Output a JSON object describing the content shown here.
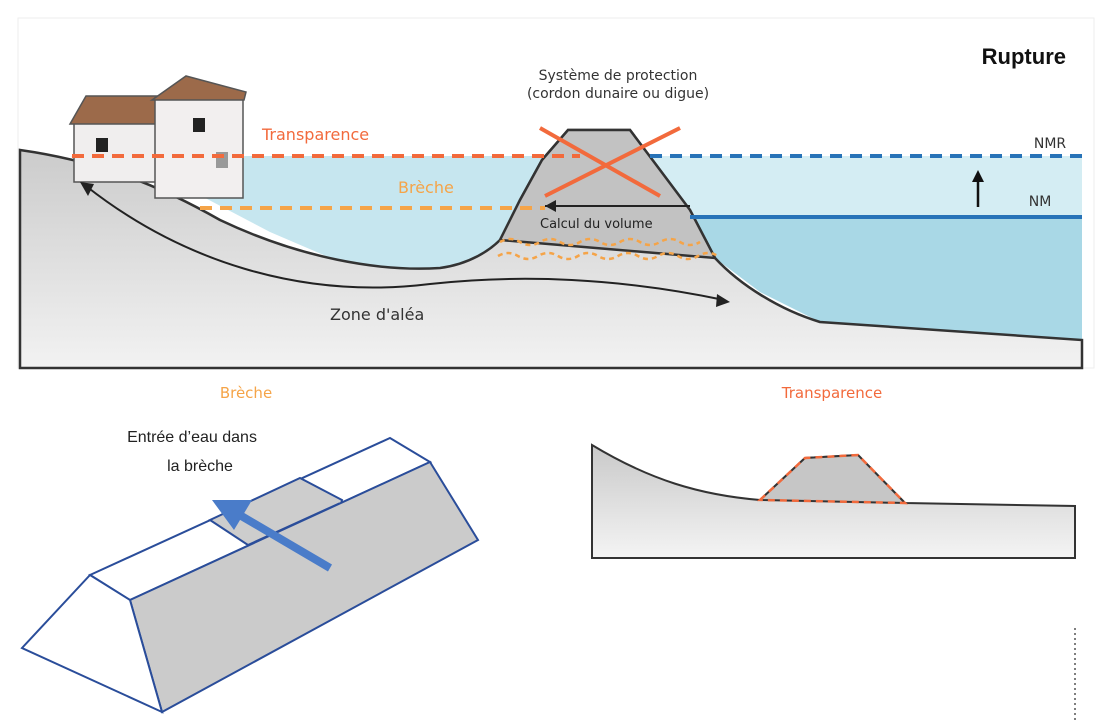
{
  "top": {
    "title": "Rupture",
    "protection_line1": "Système de protection",
    "protection_line2": "(cordon dunaire ou digue)",
    "transparence_label": "Transparence",
    "breche_label": "Brèche",
    "volume_label": "Calcul du volume",
    "zone_label": "Zone d'aléa",
    "nmr_label": "NMR",
    "nm_label": "NM"
  },
  "bottom_left": {
    "heading": "Brèche",
    "arrow_label_line1": "Entrée d’eau dans",
    "arrow_label_line2": "la brèche"
  },
  "bottom_right": {
    "heading": "Transparence"
  },
  "colors": {
    "orange_red": "#f26a3c",
    "orange": "#f5a448",
    "blue": "#2773b8",
    "water": "#bfe2ec",
    "ground": "#cfcfcf",
    "outline_blue": "#2a4d9a"
  }
}
